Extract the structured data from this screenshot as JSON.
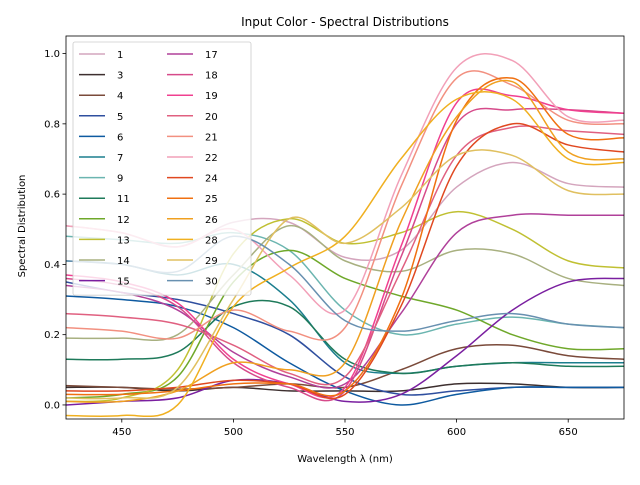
{
  "chart_data": {
    "type": "line",
    "title": "Input Color - Spectral Distributions",
    "xlabel": "Wavelength λ (nm)",
    "ylabel": "Spectral Distribution",
    "xlim": [
      425,
      675
    ],
    "ylim": [
      -0.04,
      1.05
    ],
    "xticks": [
      450,
      500,
      550,
      600,
      650
    ],
    "yticks": [
      0.0,
      0.2,
      0.4,
      0.6,
      0.8,
      1.0
    ],
    "xtick_labels": [
      "450",
      "500",
      "550",
      "600",
      "650"
    ],
    "ytick_labels": [
      "0.0",
      "0.2",
      "0.4",
      "0.6",
      "0.8",
      "1.0"
    ],
    "grid": false,
    "legend_position": "top-left",
    "legend_columns": 2,
    "x": [
      425,
      450,
      475,
      500,
      525,
      550,
      575,
      600,
      625,
      650,
      675
    ],
    "series": [
      {
        "name": "1",
        "color": "#d4a5bd",
        "values": [
          0.51,
          0.49,
          0.45,
          0.52,
          0.52,
          0.42,
          0.44,
          0.62,
          0.69,
          0.63,
          0.62
        ]
      },
      {
        "name": "3",
        "color": "#3d2f2f",
        "values": [
          0.05,
          0.05,
          0.04,
          0.05,
          0.04,
          0.04,
          0.04,
          0.06,
          0.06,
          0.05,
          0.05
        ]
      },
      {
        "name": "4",
        "color": "#7a4a3a",
        "values": [
          0.055,
          0.05,
          0.045,
          0.05,
          0.06,
          0.05,
          0.1,
          0.16,
          0.17,
          0.14,
          0.13
        ]
      },
      {
        "name": "5",
        "color": "#2f4f9f",
        "values": [
          0.35,
          0.32,
          0.3,
          0.26,
          0.2,
          0.08,
          0.03,
          0.04,
          0.05,
          0.05,
          0.05
        ]
      },
      {
        "name": "6",
        "color": "#0e5aa0",
        "values": [
          0.31,
          0.3,
          0.28,
          0.22,
          0.12,
          0.04,
          0.0,
          0.03,
          0.05,
          0.05,
          0.05
        ]
      },
      {
        "name": "7",
        "color": "#1b7e8e",
        "values": [
          0.41,
          0.4,
          0.37,
          0.4,
          0.3,
          0.12,
          0.09,
          0.11,
          0.12,
          0.12,
          0.12
        ]
      },
      {
        "name": "9",
        "color": "#6bb5b0",
        "values": [
          0.48,
          0.47,
          0.46,
          0.49,
          0.44,
          0.27,
          0.2,
          0.23,
          0.25,
          0.23,
          0.22
        ]
      },
      {
        "name": "11",
        "color": "#1e7a5a",
        "values": [
          0.13,
          0.13,
          0.15,
          0.28,
          0.28,
          0.13,
          0.09,
          0.11,
          0.12,
          0.11,
          0.11
        ]
      },
      {
        "name": "12",
        "color": "#6fa82a",
        "values": [
          0.02,
          0.03,
          0.08,
          0.35,
          0.44,
          0.36,
          0.31,
          0.27,
          0.2,
          0.16,
          0.16
        ]
      },
      {
        "name": "13",
        "color": "#c0c032",
        "values": [
          0.01,
          0.02,
          0.1,
          0.43,
          0.53,
          0.46,
          0.49,
          0.55,
          0.5,
          0.41,
          0.39
        ]
      },
      {
        "name": "14",
        "color": "#a8b080",
        "values": [
          0.19,
          0.19,
          0.2,
          0.37,
          0.51,
          0.41,
          0.38,
          0.44,
          0.43,
          0.36,
          0.34
        ]
      },
      {
        "name": "15",
        "color": "#7a1fa0",
        "values": [
          0.0,
          0.01,
          0.02,
          0.07,
          0.06,
          0.01,
          0.03,
          0.14,
          0.27,
          0.35,
          0.36
        ]
      },
      {
        "name": "17",
        "color": "#b0409a",
        "values": [
          0.34,
          0.32,
          0.27,
          0.15,
          0.08,
          0.06,
          0.26,
          0.49,
          0.54,
          0.54,
          0.54
        ]
      },
      {
        "name": "18",
        "color": "#d64a8a",
        "values": [
          0.36,
          0.34,
          0.28,
          0.12,
          0.05,
          0.04,
          0.42,
          0.8,
          0.84,
          0.84,
          0.83
        ]
      },
      {
        "name": "19",
        "color": "#f04090",
        "values": [
          0.37,
          0.35,
          0.29,
          0.13,
          0.06,
          0.05,
          0.45,
          0.86,
          0.88,
          0.84,
          0.83
        ]
      },
      {
        "name": "20",
        "color": "#e06080",
        "values": [
          0.26,
          0.25,
          0.23,
          0.17,
          0.09,
          0.08,
          0.38,
          0.71,
          0.79,
          0.78,
          0.77
        ]
      },
      {
        "name": "21",
        "color": "#f29080",
        "values": [
          0.22,
          0.21,
          0.19,
          0.27,
          0.21,
          0.22,
          0.62,
          0.93,
          0.91,
          0.81,
          0.8
        ]
      },
      {
        "name": "22",
        "color": "#f2a0b8",
        "values": [
          0.51,
          0.49,
          0.45,
          0.5,
          0.37,
          0.27,
          0.65,
          0.96,
          0.98,
          0.82,
          0.81
        ]
      },
      {
        "name": "24",
        "color": "#e04820",
        "values": [
          0.04,
          0.04,
          0.05,
          0.07,
          0.06,
          0.03,
          0.28,
          0.68,
          0.8,
          0.74,
          0.72
        ]
      },
      {
        "name": "25",
        "color": "#f07010",
        "values": [
          0.03,
          0.03,
          0.04,
          0.06,
          0.06,
          0.04,
          0.3,
          0.81,
          0.93,
          0.77,
          0.76
        ]
      },
      {
        "name": "26",
        "color": "#f0a020",
        "values": [
          0.01,
          0.01,
          0.04,
          0.12,
          0.1,
          0.12,
          0.52,
          0.82,
          0.92,
          0.72,
          0.7
        ]
      },
      {
        "name": "28",
        "color": "#f0b020",
        "values": [
          -0.03,
          -0.03,
          0.0,
          0.28,
          0.39,
          0.48,
          0.7,
          0.87,
          0.87,
          0.7,
          0.69
        ]
      },
      {
        "name": "29",
        "color": "#e0c060",
        "values": [
          0.02,
          0.02,
          0.05,
          0.3,
          0.53,
          0.46,
          0.56,
          0.71,
          0.71,
          0.61,
          0.6
        ]
      },
      {
        "name": "30",
        "color": "#6890b0",
        "values": [
          0.41,
          0.4,
          0.38,
          0.48,
          0.4,
          0.24,
          0.21,
          0.24,
          0.26,
          0.23,
          0.22
        ]
      }
    ]
  }
}
